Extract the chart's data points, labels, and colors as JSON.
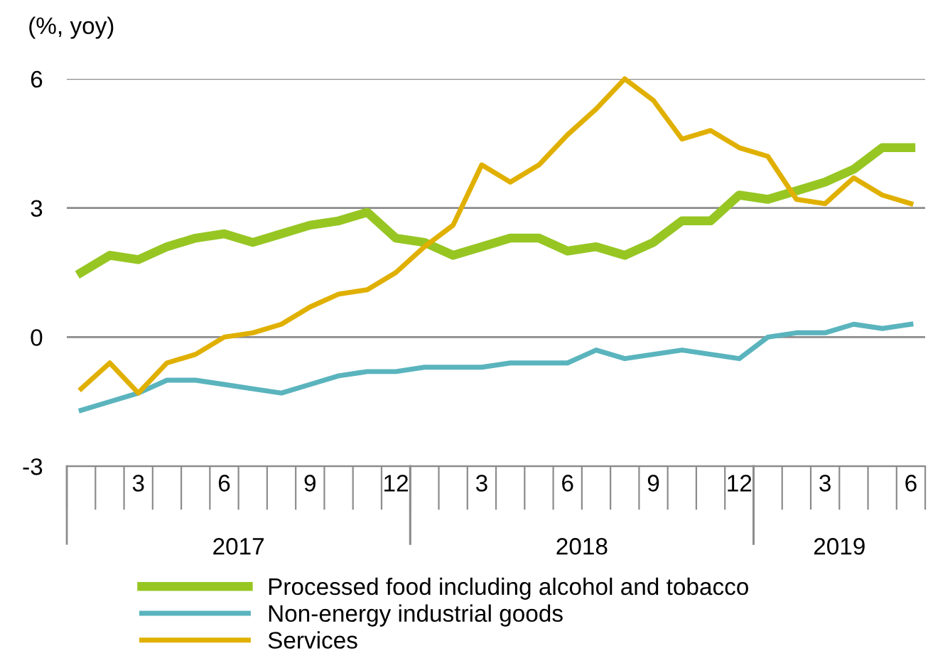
{
  "chart_data": {
    "type": "line",
    "ylabel": "(%, yoy)",
    "categories": [
      null,
      null,
      "3",
      null,
      null,
      "6",
      null,
      null,
      "9",
      null,
      null,
      "12",
      null,
      null,
      "3",
      null,
      null,
      "6",
      null,
      null,
      "9",
      null,
      null,
      "12",
      null,
      null,
      "3",
      null,
      null,
      "6"
    ],
    "annotations": [
      "2017",
      "2018",
      "2019"
    ],
    "series": [
      {
        "name": "Processed food including alcohol and tobacco",
        "color": "#97c623",
        "values": [
          1.5,
          1.9,
          1.8,
          2.1,
          2.3,
          2.4,
          2.2,
          2.4,
          2.6,
          2.7,
          2.9,
          2.3,
          2.2,
          1.9,
          2.1,
          2.3,
          2.3,
          2.0,
          2.1,
          1.9,
          2.2,
          2.7,
          2.7,
          3.3,
          3.2,
          3.4,
          3.6,
          3.9,
          4.4,
          4.4
        ]
      },
      {
        "name": "Non-energy industrial goods",
        "color": "#5ab4bd",
        "values": [
          -1.7,
          -1.5,
          -1.3,
          -1.0,
          -1.0,
          -1.1,
          -1.2,
          -1.3,
          -1.1,
          -0.9,
          -0.8,
          -0.8,
          -0.7,
          -0.7,
          -0.7,
          -0.6,
          -0.6,
          -0.6,
          -0.3,
          -0.5,
          -0.4,
          -0.3,
          -0.4,
          -0.5,
          0.0,
          0.1,
          0.1,
          0.3,
          0.2,
          0.3
        ]
      },
      {
        "name": "Services",
        "color": "#e0b000",
        "values": [
          -1.2,
          -0.6,
          -1.3,
          -0.6,
          -0.4,
          0.0,
          0.1,
          0.3,
          0.7,
          1.0,
          1.1,
          1.5,
          2.1,
          2.6,
          4.0,
          3.6,
          4.0,
          4.7,
          5.3,
          6.0,
          5.5,
          4.6,
          4.8,
          4.4,
          4.2,
          3.2,
          3.1,
          3.7,
          3.3,
          3.1
        ]
      }
    ],
    "ylim": [
      -3,
      6
    ],
    "yticks": [
      -3,
      0,
      3,
      6
    ],
    "grid": "y",
    "legend": "bottom",
    "marker": "none",
    "line_style": "solid"
  }
}
